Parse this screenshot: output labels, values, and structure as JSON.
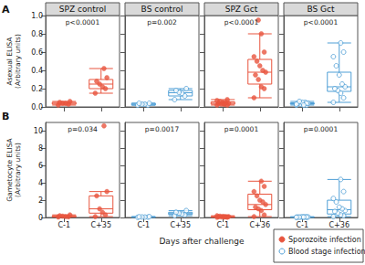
{
  "chart_data": [
    {
      "type": "box",
      "title": "SPZ control",
      "panel_label": "A",
      "ylabel": "Asexual ELISA\n(Arbitrary units)",
      "annotation": "p<0.0001",
      "categories": [
        null,
        null
      ],
      "ylim": [
        0,
        1
      ],
      "yticks": [
        {
          "value": 0,
          "label": "0.0"
        },
        0.2,
        0.4,
        0.6,
        0.8,
        {
          "value": 1,
          "label": "1.0"
        }
      ],
      "grid": false,
      "tick_labels": "y",
      "series": [
        {
          "name": "Sporozoite infection",
          "color": "#e8553e",
          "marker": "circle",
          "values": [
            [
              0.02,
              0.03,
              0.04,
              0.04,
              0.05,
              0.06
            ],
            [
              0.15,
              0.2,
              0.22,
              0.25,
              0.28,
              0.32,
              0.42
            ]
          ],
          "boxes": [
            [
              0.02,
              0.03,
              0.04,
              0.05,
              0.06
            ],
            [
              0.15,
              0.2,
              0.25,
              0.3,
              0.42
            ]
          ]
        }
      ]
    },
    {
      "type": "box",
      "title": "BS control",
      "annotation": "p=0.002",
      "categories": [
        null,
        null
      ],
      "ylim": [
        0,
        1
      ],
      "yticks": [
        0,
        0.2,
        0.4,
        0.6,
        0.8,
        1
      ],
      "grid": false,
      "tick_labels": false,
      "series": [
        {
          "name": "Blood stage infection",
          "color": "#4f9fd6",
          "marker": "ring",
          "values": [
            [
              0.02,
              0.02,
              0.03,
              0.03,
              0.04,
              0.04
            ],
            [
              0.08,
              0.12,
              0.15,
              0.16,
              0.18,
              0.2
            ]
          ],
          "boxes": [
            [
              0.02,
              0.02,
              0.03,
              0.04,
              0.04
            ],
            [
              0.08,
              0.12,
              0.155,
              0.18,
              0.2
            ]
          ]
        }
      ]
    },
    {
      "type": "box",
      "title": "SPZ Gct",
      "annotation": "p<0.0001",
      "categories": [
        null,
        null
      ],
      "ylim": [
        0,
        1
      ],
      "yticks": [
        0,
        0.2,
        0.4,
        0.6,
        0.8,
        1
      ],
      "grid": false,
      "tick_labels": false,
      "series": [
        {
          "name": "Sporozoite infection",
          "color": "#e8553e",
          "marker": "circle",
          "values": [
            [
              0.02,
              0.02,
              0.03,
              0.03,
              0.04,
              0.04,
              0.05,
              0.05,
              0.06,
              0.07,
              0.08,
              0.03
            ],
            [
              0.1,
              0.2,
              0.22,
              0.3,
              0.35,
              0.38,
              0.4,
              0.45,
              0.5,
              0.55,
              0.6,
              0.8,
              0.95
            ]
          ],
          "boxes": [
            [
              0.02,
              0.03,
              0.04,
              0.055,
              0.08
            ],
            [
              0.1,
              0.25,
              0.38,
              0.52,
              0.8
            ]
          ]
        }
      ]
    },
    {
      "type": "box",
      "title": "BS Gct",
      "annotation": "p<0.0001",
      "categories": [
        null,
        null
      ],
      "ylim": [
        0,
        1
      ],
      "yticks": [
        0,
        0.2,
        0.4,
        0.6,
        0.8,
        1
      ],
      "grid": false,
      "tick_labels": false,
      "series": [
        {
          "name": "Blood stage infection",
          "color": "#4f9fd6",
          "marker": "ring",
          "values": [
            [
              0.02,
              0.02,
              0.03,
              0.03,
              0.04,
              0.04,
              0.05,
              0.05,
              0.06,
              0.03,
              0.04,
              0.02
            ],
            [
              0.05,
              0.1,
              0.15,
              0.18,
              0.2,
              0.22,
              0.25,
              0.35,
              0.45,
              0.55,
              0.6,
              0.7
            ]
          ],
          "boxes": [
            [
              0.02,
              0.03,
              0.035,
              0.045,
              0.06
            ],
            [
              0.05,
              0.17,
              0.22,
              0.38,
              0.7
            ]
          ]
        }
      ]
    },
    {
      "type": "box",
      "panel_label": "B",
      "ylabel": "Gametocyte ELISA\n(Arbitrary units)",
      "annotation": "p=0.034",
      "categories": [
        "C-1",
        "C+35"
      ],
      "ylim": [
        0,
        11
      ],
      "yticks": [
        0,
        2,
        4,
        6,
        8,
        10
      ],
      "grid": false,
      "series": [
        {
          "name": "Sporozoite infection",
          "color": "#e8553e",
          "marker": "circle",
          "values": [
            [
              0.05,
              0.08,
              0.1,
              0.15,
              0.2,
              0.3
            ],
            [
              0.1,
              0.3,
              0.6,
              1.0,
              2.5,
              3.0,
              10.6
            ]
          ],
          "boxes": [
            [
              0.05,
              0.08,
              0.12,
              0.2,
              0.3
            ],
            [
              0.1,
              0.5,
              1.0,
              2.5,
              3.0
            ]
          ]
        }
      ]
    },
    {
      "type": "box",
      "annotation": "p=0.0017",
      "categories": [
        "C-1",
        "C+35"
      ],
      "ylim": [
        0,
        11
      ],
      "yticks": [
        0,
        2,
        4,
        6,
        8,
        10
      ],
      "grid": false,
      "tick_labels": "x",
      "series": [
        {
          "name": "Blood stage infection",
          "color": "#4f9fd6",
          "marker": "ring",
          "values": [
            [
              0.02,
              0.04,
              0.05,
              0.06,
              0.08,
              0.1
            ],
            [
              0.2,
              0.3,
              0.4,
              0.5,
              0.6,
              0.8
            ]
          ],
          "boxes": [
            [
              0.02,
              0.04,
              0.055,
              0.08,
              0.1
            ],
            [
              0.2,
              0.35,
              0.45,
              0.6,
              0.8
            ]
          ]
        }
      ]
    },
    {
      "type": "box",
      "annotation": "p=0.0001",
      "categories": [
        "C-1",
        "C+36"
      ],
      "ylim": [
        0,
        11
      ],
      "yticks": [
        0,
        2,
        4,
        6,
        8,
        10
      ],
      "grid": false,
      "tick_labels": "x",
      "series": [
        {
          "name": "Sporozoite infection",
          "color": "#e8553e",
          "marker": "circle",
          "values": [
            [
              0.02,
              0.04,
              0.05,
              0.06,
              0.08,
              0.1,
              0.1,
              0.12,
              0.15,
              0.2,
              0.05,
              0.08
            ],
            [
              0.1,
              0.3,
              0.8,
              1.0,
              1.2,
              1.5,
              1.8,
              2.0,
              2.5,
              3.0,
              3.6,
              4.2
            ]
          ],
          "boxes": [
            [
              0.02,
              0.05,
              0.08,
              0.11,
              0.2
            ],
            [
              0.1,
              0.9,
              1.5,
              2.7,
              4.2
            ]
          ]
        }
      ]
    },
    {
      "type": "box",
      "annotation": "p=0.0001",
      "categories": [
        "C-1",
        "C+36"
      ],
      "ylim": [
        0,
        11
      ],
      "yticks": [
        0,
        2,
        4,
        6,
        8,
        10
      ],
      "grid": false,
      "tick_labels": "x",
      "series": [
        {
          "name": "Blood stage infection",
          "color": "#4f9fd6",
          "marker": "ring",
          "values": [
            [
              0.02,
              0.03,
              0.04,
              0.05,
              0.05,
              0.06,
              0.07,
              0.08,
              0.04,
              0.03,
              0.06,
              0.05
            ],
            [
              0.1,
              0.2,
              0.3,
              0.5,
              0.7,
              0.8,
              1.0,
              1.2,
              1.8,
              2.2,
              3.0,
              4.4
            ]
          ],
          "boxes": [
            [
              0.02,
              0.04,
              0.05,
              0.065,
              0.08
            ],
            [
              0.1,
              0.4,
              0.9,
              2.0,
              4.4
            ]
          ]
        }
      ]
    }
  ],
  "figure": {
    "xlabel": "Days after challenge",
    "legend": "lower right"
  }
}
